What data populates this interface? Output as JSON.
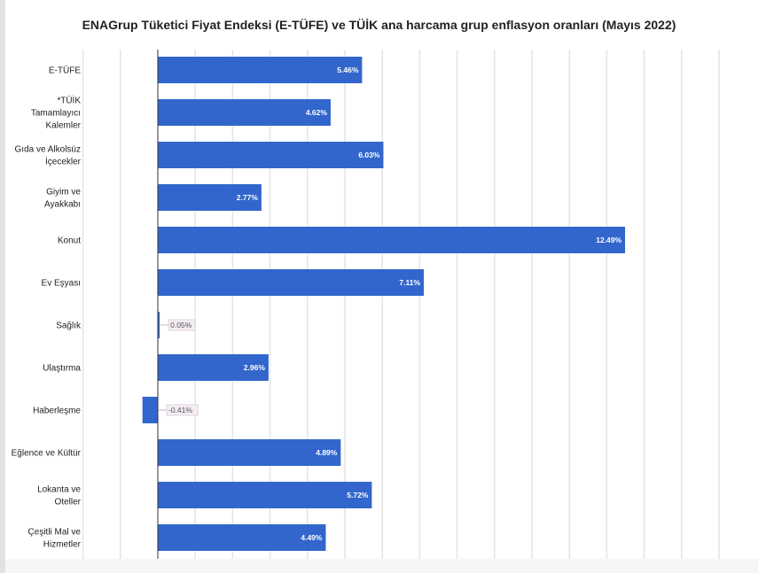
{
  "chart_data": {
    "type": "bar",
    "orientation": "horizontal",
    "title": "ENAGrup Tüketici Fiyat Endeksi (E-TÜFE) ve TÜİK ana harcama grup enflasyon oranları (Mayıs 2022)",
    "categories": [
      [
        "E-TÜFE"
      ],
      [
        "*TÜİK",
        "Tamamlayıcı",
        "Kalemler"
      ],
      [
        "Gıda ve Alkolsüz",
        "İçecekler"
      ],
      [
        "Giyim ve",
        "Ayakkabı"
      ],
      [
        "Konut"
      ],
      [
        "Ev Eşyası"
      ],
      [
        "Sağlık"
      ],
      [
        "Ulaştırma"
      ],
      [
        "Haberleşme"
      ],
      [
        "Eğlence ve Kültür"
      ],
      [
        "Lokanta ve",
        "Oteller"
      ],
      [
        "Çeşitli Mal ve",
        "Hizmetler"
      ]
    ],
    "values": [
      5.46,
      4.62,
      6.03,
      2.77,
      12.49,
      7.11,
      0.05,
      2.96,
      -0.41,
      4.89,
      5.72,
      4.49
    ],
    "data_labels": [
      "5.46%",
      "4.62%",
      "6.03%",
      "2.77%",
      "12.49%",
      "7.11%",
      "0.05%",
      "2.96%",
      "-0.41%",
      "4.89%",
      "5.72%",
      "4.49%"
    ],
    "xlim": [
      -2,
      16
    ],
    "grid": true,
    "xlabel": "",
    "ylabel": "",
    "bar_color": "#3366cc"
  }
}
